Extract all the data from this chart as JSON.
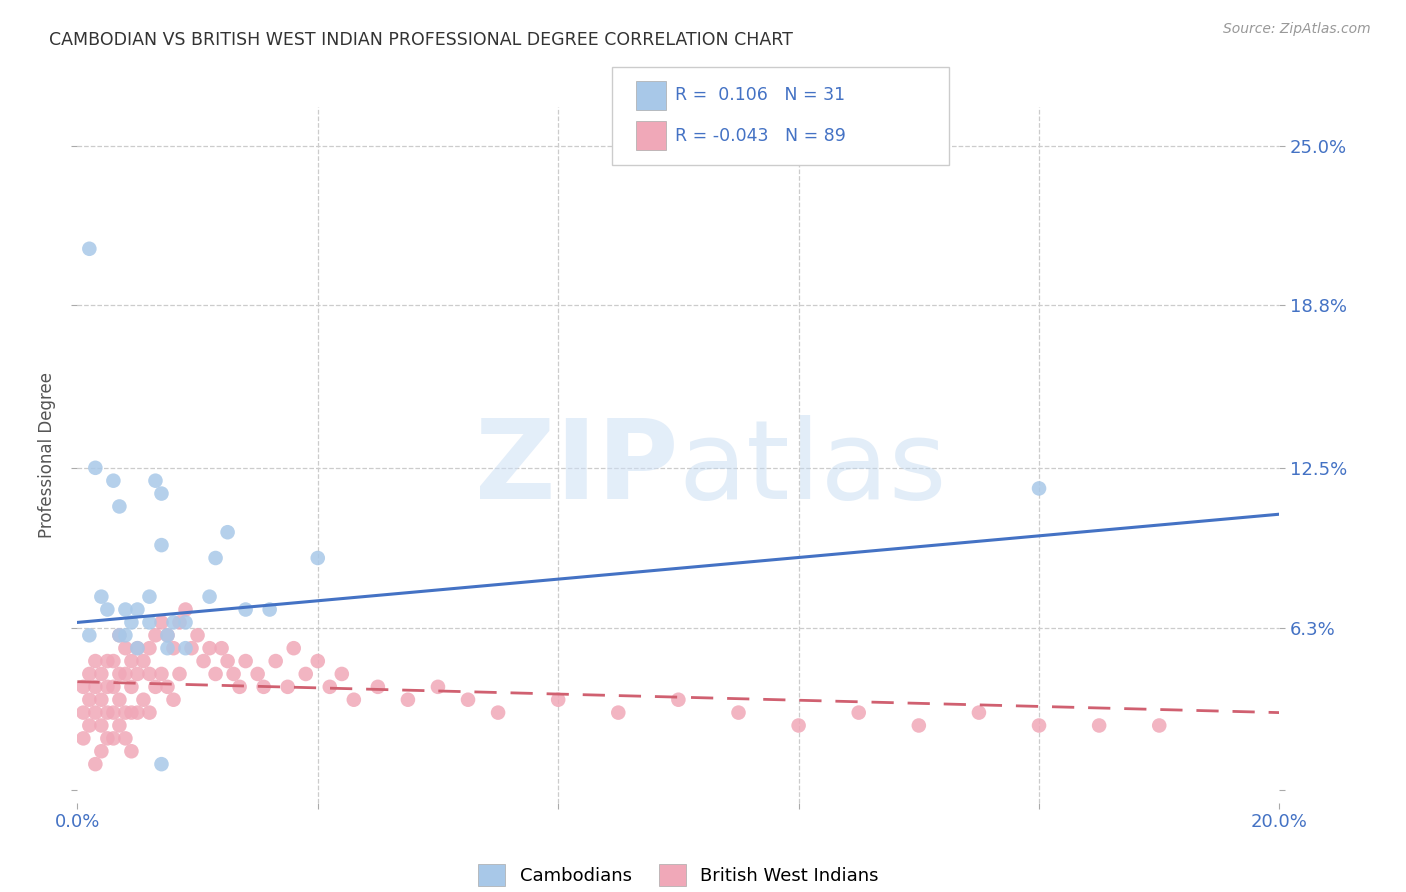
{
  "title": "CAMBODIAN VS BRITISH WEST INDIAN PROFESSIONAL DEGREE CORRELATION CHART",
  "source": "Source: ZipAtlas.com",
  "ylabel": "Professional Degree",
  "xlim": [
    0.0,
    0.2
  ],
  "ylim": [
    -0.005,
    0.265
  ],
  "plot_ylim": [
    0.0,
    0.25
  ],
  "cambodian_color": "#a8c8e8",
  "british_wi_color": "#f0a8b8",
  "trend_cambodian_color": "#4472c4",
  "trend_british_wi_color": "#d06070",
  "background_color": "#ffffff",
  "watermark_text": "ZIPatlas",
  "legend_R_cambodian": "0.106",
  "legend_N_cambodian": "31",
  "legend_R_british_wi": "-0.043",
  "legend_N_british_wi": "89",
  "cam_trend_x0": 0.0,
  "cam_trend_y0": 0.065,
  "cam_trend_x1": 0.2,
  "cam_trend_y1": 0.107,
  "bwi_trend_x0": 0.0,
  "bwi_trend_y0": 0.042,
  "bwi_trend_x1": 0.2,
  "bwi_trend_y1": 0.03,
  "cambodian_x": [
    0.002,
    0.003,
    0.006,
    0.007,
    0.008,
    0.009,
    0.01,
    0.012,
    0.013,
    0.014,
    0.014,
    0.015,
    0.016,
    0.018,
    0.023,
    0.025,
    0.028,
    0.032,
    0.002,
    0.004,
    0.005,
    0.007,
    0.008,
    0.01,
    0.012,
    0.015,
    0.018,
    0.022,
    0.04,
    0.16,
    0.014
  ],
  "cambodian_y": [
    0.21,
    0.125,
    0.12,
    0.11,
    0.07,
    0.065,
    0.07,
    0.075,
    0.12,
    0.115,
    0.095,
    0.06,
    0.065,
    0.055,
    0.09,
    0.1,
    0.07,
    0.07,
    0.06,
    0.075,
    0.07,
    0.06,
    0.06,
    0.055,
    0.065,
    0.055,
    0.065,
    0.075,
    0.09,
    0.117,
    0.01
  ],
  "british_wi_x": [
    0.001,
    0.001,
    0.001,
    0.002,
    0.002,
    0.002,
    0.003,
    0.003,
    0.003,
    0.003,
    0.004,
    0.004,
    0.004,
    0.004,
    0.005,
    0.005,
    0.005,
    0.005,
    0.006,
    0.006,
    0.006,
    0.006,
    0.007,
    0.007,
    0.007,
    0.007,
    0.008,
    0.008,
    0.008,
    0.008,
    0.009,
    0.009,
    0.009,
    0.009,
    0.01,
    0.01,
    0.01,
    0.011,
    0.011,
    0.012,
    0.012,
    0.012,
    0.013,
    0.013,
    0.014,
    0.014,
    0.015,
    0.015,
    0.016,
    0.016,
    0.017,
    0.017,
    0.018,
    0.019,
    0.02,
    0.021,
    0.022,
    0.023,
    0.024,
    0.025,
    0.026,
    0.027,
    0.028,
    0.03,
    0.031,
    0.033,
    0.035,
    0.036,
    0.038,
    0.04,
    0.042,
    0.044,
    0.046,
    0.05,
    0.055,
    0.06,
    0.065,
    0.07,
    0.08,
    0.09,
    0.1,
    0.11,
    0.12,
    0.13,
    0.14,
    0.15,
    0.16,
    0.17,
    0.18
  ],
  "british_wi_y": [
    0.04,
    0.03,
    0.02,
    0.045,
    0.035,
    0.025,
    0.05,
    0.04,
    0.03,
    0.01,
    0.045,
    0.035,
    0.025,
    0.015,
    0.05,
    0.04,
    0.03,
    0.02,
    0.05,
    0.04,
    0.03,
    0.02,
    0.06,
    0.045,
    0.035,
    0.025,
    0.055,
    0.045,
    0.03,
    0.02,
    0.05,
    0.04,
    0.03,
    0.015,
    0.055,
    0.045,
    0.03,
    0.05,
    0.035,
    0.055,
    0.045,
    0.03,
    0.06,
    0.04,
    0.065,
    0.045,
    0.06,
    0.04,
    0.055,
    0.035,
    0.065,
    0.045,
    0.07,
    0.055,
    0.06,
    0.05,
    0.055,
    0.045,
    0.055,
    0.05,
    0.045,
    0.04,
    0.05,
    0.045,
    0.04,
    0.05,
    0.04,
    0.055,
    0.045,
    0.05,
    0.04,
    0.045,
    0.035,
    0.04,
    0.035,
    0.04,
    0.035,
    0.03,
    0.035,
    0.03,
    0.035,
    0.03,
    0.025,
    0.03,
    0.025,
    0.03,
    0.025,
    0.025,
    0.025
  ]
}
